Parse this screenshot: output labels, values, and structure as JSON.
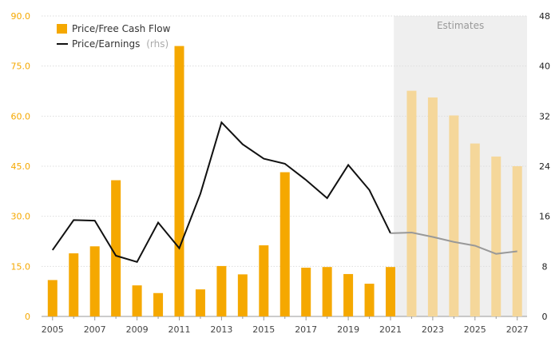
{
  "chart_data": {
    "type": "bar",
    "title": "",
    "xlabel": "",
    "ylabel": "",
    "x": [
      2005,
      2006,
      2007,
      2008,
      2009,
      2010,
      2011,
      2012,
      2013,
      2014,
      2015,
      2016,
      2017,
      2018,
      2019,
      2020,
      2021,
      2022,
      2023,
      2024,
      2025,
      2026,
      2027
    ],
    "x_tick_labels": [
      "2005",
      "2007",
      "2009",
      "2011",
      "2013",
      "2015",
      "2017",
      "2019",
      "2021",
      "2023",
      "2025",
      "2027"
    ],
    "left_axis": {
      "ylim": [
        0,
        90
      ],
      "ticks": [
        "0",
        "15.0",
        "30.0",
        "45.0",
        "60.0",
        "75.0",
        "90.0"
      ],
      "color": "#f5a800"
    },
    "right_axis": {
      "ylim": [
        0,
        48
      ],
      "ticks": [
        "0",
        "8",
        "16",
        "24",
        "32",
        "40",
        "48"
      ],
      "color": "#222222"
    },
    "series": [
      {
        "name": "Price/Free Cash Flow",
        "kind": "bar",
        "axis": "left",
        "color": "#f5a800",
        "estimate_color": "#f5d79a",
        "values": [
          10.9,
          18.9,
          21.0,
          40.8,
          9.3,
          7.0,
          81.0,
          8.1,
          15.1,
          12.6,
          21.3,
          43.2,
          14.6,
          14.8,
          12.7,
          9.8,
          14.8,
          67.6,
          65.6,
          60.2,
          51.8,
          47.9,
          45.0
        ]
      },
      {
        "name": "Price/Earnings",
        "name_suffix": "(rhs)",
        "kind": "line",
        "axis": "right",
        "color": "#111111",
        "estimate_color": "#999999",
        "values": [
          10.6,
          15.4,
          15.3,
          9.7,
          8.7,
          15.0,
          10.9,
          19.6,
          31.0,
          27.5,
          25.2,
          24.4,
          21.8,
          18.9,
          24.2,
          20.2,
          13.3,
          13.4,
          12.7,
          11.9,
          11.3,
          10.0,
          10.4
        ]
      }
    ],
    "estimates": {
      "label": "Estimates",
      "start_year": 2022,
      "end_year": 2027,
      "shade_color": "#efefef"
    },
    "grid": true,
    "legend": "top-left"
  }
}
